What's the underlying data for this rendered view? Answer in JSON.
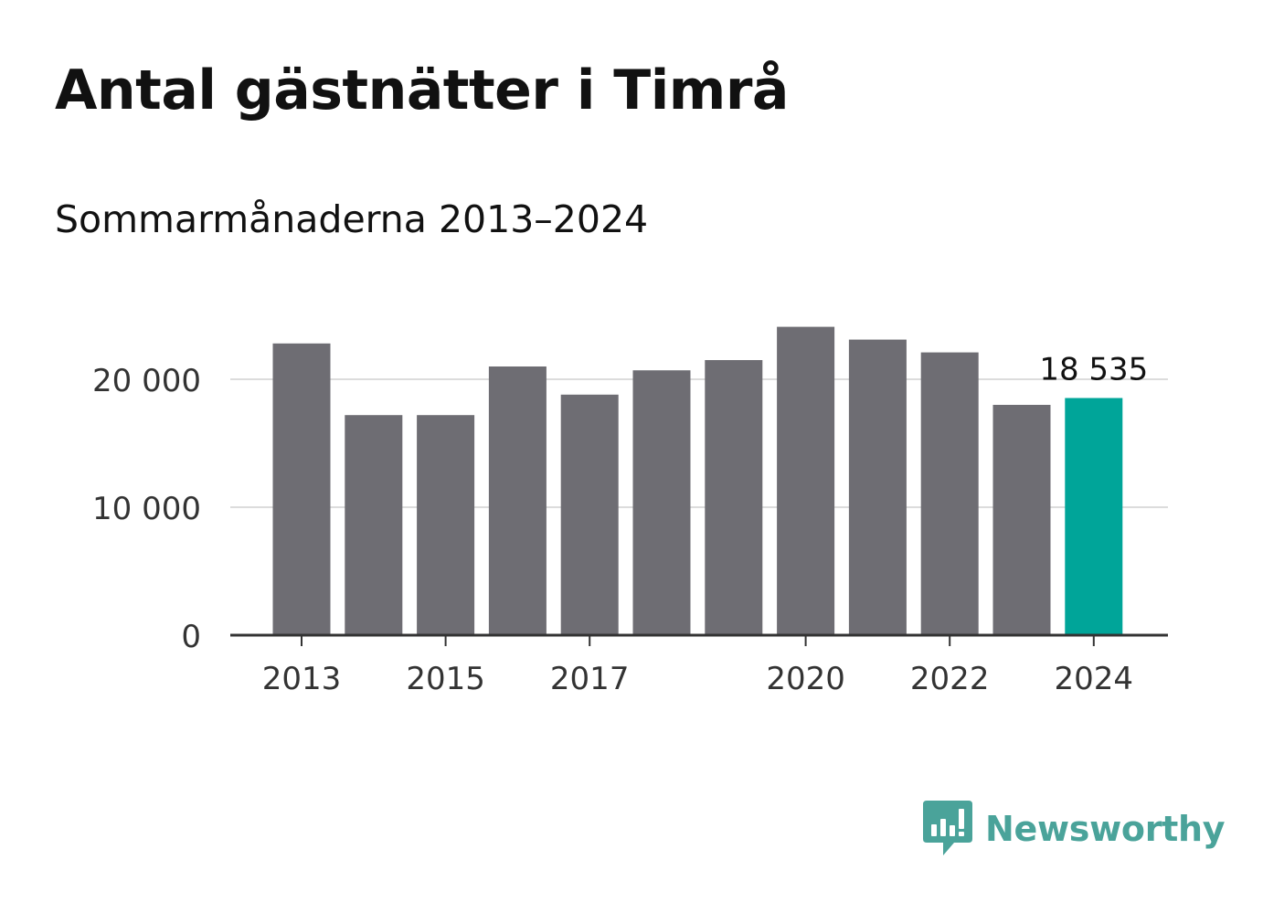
{
  "title": "Antal gästnätter i Timrå",
  "subtitle": "Sommarmånaderna 2013–2024",
  "brand": {
    "name": "Newsworthy",
    "icon": "newsworthy-logo-icon",
    "color": "#4aa39a"
  },
  "colors": {
    "bar": "#6e6d73",
    "highlight": "#00a599",
    "grid": "#dcdcdc",
    "axis": "#333333"
  },
  "chart_data": {
    "type": "bar",
    "categories": [
      "2013",
      "2014",
      "2015",
      "2016",
      "2017",
      "2018",
      "2019",
      "2020",
      "2021",
      "2022",
      "2023",
      "2024"
    ],
    "values": [
      22800,
      17200,
      17200,
      21000,
      18800,
      20700,
      21500,
      24100,
      23100,
      22100,
      18000,
      18535
    ],
    "highlight_index": 11,
    "data_labels": [
      {
        "index": 11,
        "text": "18 535"
      }
    ],
    "yticks": [
      {
        "value": 0,
        "label": "0"
      },
      {
        "value": 10000,
        "label": "10 000"
      },
      {
        "value": 20000,
        "label": "20 000"
      }
    ],
    "xticks": [
      {
        "index": 0,
        "label": "2013"
      },
      {
        "index": 2,
        "label": "2015"
      },
      {
        "index": 4,
        "label": "2017"
      },
      {
        "index": 7,
        "label": "2020"
      },
      {
        "index": 9,
        "label": "2022"
      },
      {
        "index": 11,
        "label": "2024"
      }
    ],
    "ylim": [
      0,
      25000
    ],
    "grid": true,
    "xlabel": "",
    "ylabel": ""
  }
}
